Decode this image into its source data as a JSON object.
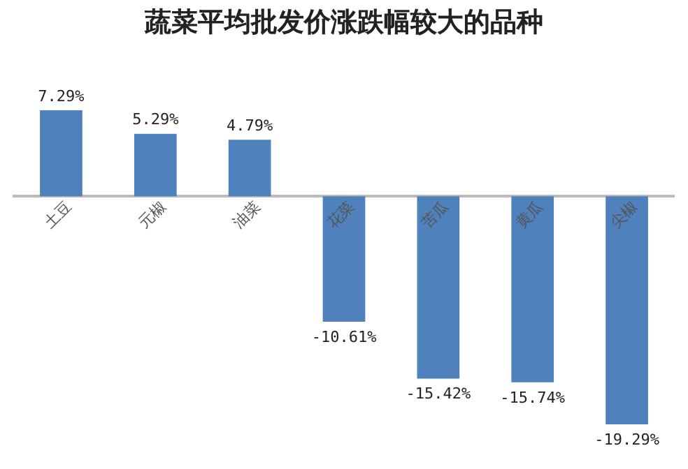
{
  "chart_data": {
    "type": "bar",
    "title": "蔬菜平均批发价涨跌幅较大的品种",
    "categories": [
      "土豆",
      "元椒",
      "油菜",
      "花菜",
      "苦瓜",
      "黄瓜",
      "尖椒"
    ],
    "values": [
      7.29,
      5.29,
      4.79,
      -10.61,
      -15.42,
      -15.74,
      -19.29
    ],
    "value_labels": [
      "7.29%",
      "5.29%",
      "4.79%",
      "-10.61%",
      "-15.42%",
      "-15.74%",
      "-19.29%"
    ],
    "color": "#4f81bd",
    "tick_labels": "x",
    "grid": false,
    "legend": false
  }
}
